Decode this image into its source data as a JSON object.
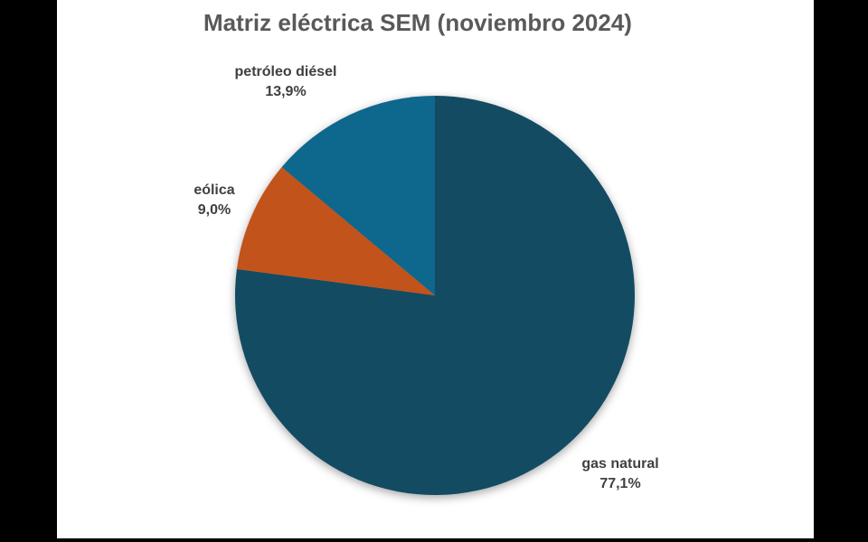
{
  "page": {
    "background_color": "#000000",
    "canvas_color": "#ffffff"
  },
  "chart_data": {
    "type": "pie",
    "title": "Matriz eléctrica SEM (noviembro 2024)",
    "start_angle_deg": 0,
    "direction": "clockwise",
    "legend": "none",
    "labels_position": "outside",
    "title_color": "#595959",
    "label_color": "#404040",
    "slices": [
      {
        "label": "gas natural",
        "value": 77.1,
        "pct_label": "77,1%",
        "color": "#134B63"
      },
      {
        "label": "eólica",
        "value": 9.0,
        "pct_label": "9,0%",
        "color": "#C2531B"
      },
      {
        "label": "petróleo diésel",
        "value": 13.9,
        "pct_label": "13,9%",
        "color": "#0E678C"
      }
    ]
  }
}
